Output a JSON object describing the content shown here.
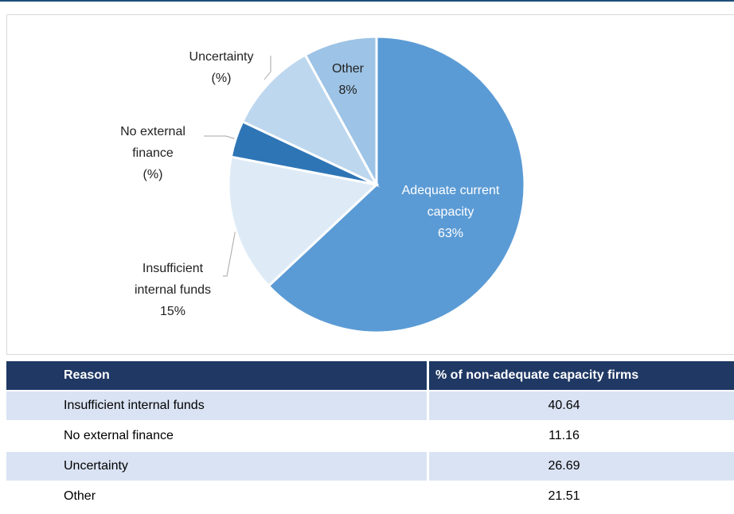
{
  "chart_data": {
    "type": "pie",
    "categories": [
      "Adequate current capacity",
      "Insufficient internal funds",
      "No external finance",
      "Uncertainty",
      "Other"
    ],
    "values": [
      63,
      15,
      4,
      10,
      8
    ],
    "value_labels": [
      "63%",
      "15%",
      "(%)",
      "(%)",
      "8%"
    ],
    "colors": [
      "#5b9bd5",
      "#deebf7",
      "#2e75b6",
      "#bdd7ee",
      "#9dc3e6"
    ]
  },
  "table": {
    "header": [
      "Reason",
      "% of non-adequate capacity firms"
    ],
    "rows": [
      [
        "Insufficient internal funds",
        "40.64"
      ],
      [
        "No external finance",
        "11.16"
      ],
      [
        "Uncertainty",
        "26.69"
      ],
      [
        "Other",
        "21.51"
      ]
    ]
  }
}
